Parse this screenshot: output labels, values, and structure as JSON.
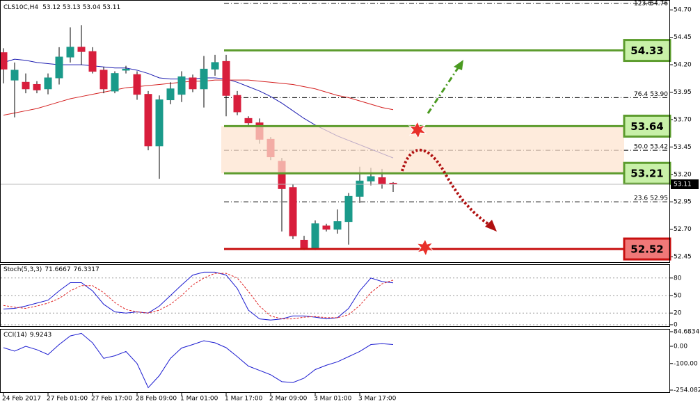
{
  "chart_data": [
    {
      "type": "candlestick",
      "title": "CLS10C,H4",
      "categories": [
        "24 Feb 2017",
        null,
        null,
        null,
        "27 Feb 01:00",
        null,
        null,
        null,
        "27 Feb 17:00",
        null,
        null,
        null,
        "28 Feb 09:00",
        null,
        null,
        null,
        "1 Mar 01:00",
        null,
        null,
        null,
        "1 Mar 17:00",
        null,
        null,
        null,
        "2 Mar 09:00",
        null,
        null,
        null,
        "3 Mar 01:00",
        null,
        null,
        null,
        "3 Mar 17:00",
        null,
        null,
        null
      ],
      "open": [
        54.31,
        54.06,
        54.04,
        54.02,
        53.98,
        54.08,
        54.27,
        54.36,
        54.32,
        54.15,
        53.96,
        54.15,
        54.11,
        53.93,
        53.46,
        53.88,
        53.93,
        54.08,
        53.98,
        54.16,
        54.23,
        53.92,
        53.71,
        53.67,
        53.52,
        53.32,
        53.08,
        52.6,
        52.53,
        52.73,
        52.7,
        52.77,
        53.0,
        53.14,
        53.17,
        53.12
      ],
      "high": [
        54.35,
        54.22,
        54.12,
        54.05,
        54.12,
        54.36,
        54.54,
        54.56,
        54.36,
        54.18,
        54.14,
        54.19,
        54.14,
        53.96,
        53.92,
        54.04,
        54.14,
        54.11,
        54.28,
        54.29,
        54.29,
        53.96,
        53.73,
        53.71,
        53.54,
        53.35,
        53.11,
        52.64,
        52.78,
        52.75,
        52.88,
        53.03,
        53.27,
        53.26,
        53.25,
        53.13
      ],
      "low": [
        54.03,
        53.72,
        53.94,
        53.94,
        53.93,
        54.02,
        54.22,
        54.2,
        54.12,
        53.94,
        53.94,
        54.12,
        53.88,
        53.42,
        53.16,
        53.84,
        53.86,
        53.95,
        53.81,
        54.1,
        53.73,
        53.74,
        53.65,
        53.48,
        53.33,
        52.68,
        52.61,
        52.51,
        52.51,
        52.68,
        52.66,
        52.56,
        52.94,
        53.1,
        53.07,
        53.04
      ],
      "close": [
        54.16,
        54.15,
        53.98,
        53.97,
        54.08,
        54.27,
        54.36,
        54.32,
        54.14,
        53.98,
        54.12,
        54.16,
        53.93,
        53.46,
        53.88,
        53.98,
        54.09,
        53.98,
        54.16,
        54.22,
        53.92,
        53.77,
        53.67,
        53.52,
        53.36,
        53.07,
        52.64,
        52.53,
        52.75,
        52.7,
        52.77,
        53.0,
        53.14,
        53.18,
        53.11,
        53.11
      ],
      "up_color": "#1a9a8a",
      "down_color": "#d81e3c",
      "series": [
        {
          "color": "#1c1cb0",
          "values": [
            54.22,
            54.25,
            54.24,
            54.22,
            54.21,
            54.2,
            54.2,
            54.2,
            54.19,
            54.18,
            54.17,
            54.17,
            54.15,
            54.12,
            54.08,
            54.07,
            54.07,
            54.07,
            54.08,
            54.08,
            54.07,
            54.04,
            54.0,
            53.96,
            53.91,
            53.85,
            53.78,
            53.71,
            53.65,
            53.6,
            53.55,
            53.51,
            53.47,
            53.43,
            53.39,
            53.35
          ]
        },
        {
          "color": "#d42020",
          "values": [
            53.74,
            53.76,
            53.78,
            53.8,
            53.83,
            53.86,
            53.89,
            53.91,
            53.93,
            53.95,
            53.97,
            53.99,
            54.0,
            54.01,
            54.02,
            54.03,
            54.04,
            54.05,
            54.05,
            54.06,
            54.06,
            54.06,
            54.06,
            54.05,
            54.04,
            54.03,
            54.02,
            54.0,
            53.98,
            53.95,
            53.92,
            53.9,
            53.87,
            53.84,
            53.81,
            53.79
          ]
        }
      ],
      "ylim": [
        52.4,
        54.79
      ],
      "yticks": [
        {
          "value": 52.45,
          "label": "52.45"
        },
        {
          "value": 52.7,
          "label": "52.70"
        },
        {
          "value": 52.95,
          "label": "52.95"
        },
        {
          "value": 53.2,
          "label": "53.20"
        },
        {
          "value": 53.45,
          "label": "53.45"
        },
        {
          "value": 53.7,
          "label": "53.70"
        },
        {
          "value": 53.95,
          "label": "53.95"
        },
        {
          "value": 54.2,
          "label": "54.20"
        },
        {
          "value": 54.45,
          "label": "54.45"
        },
        {
          "value": 54.7,
          "label": "54.70"
        }
      ],
      "levels": [
        {
          "value": 54.33,
          "color": "#5d9c2e",
          "fill": "#c8f0a8"
        },
        {
          "value": 53.64,
          "color": "#5d9c2e",
          "fill": "#c8f0a8"
        },
        {
          "value": 53.21,
          "color": "#5d9c2e",
          "fill": "#c8f0a8"
        },
        {
          "value": 52.52,
          "color": "#c81010",
          "fill": "#f07878"
        }
      ],
      "zone_color": "#fde3cf",
      "fib_levels": [
        {
          "level": "123.6",
          "price": 54.76
        },
        {
          "level": "76.4",
          "price": {
            "value": 53.9,
            "label": "53.90"
          }
        },
        {
          "level": "50.0",
          "price": 53.42
        },
        {
          "level": "23.6",
          "price": 52.95
        }
      ]
    },
    {
      "type": "line",
      "title": "Stoch(5,3,3)",
      "series": [
        {
          "color": "#1c1cd0",
          "values": [
            27,
            28,
            32,
            37,
            42,
            58,
            72,
            72,
            58,
            35,
            22,
            20,
            22,
            20,
            32,
            50,
            68,
            85,
            90,
            90,
            85,
            62,
            25,
            10,
            8,
            10,
            15,
            15,
            13,
            10,
            12,
            28,
            58,
            80,
            74,
            71.6667
          ]
        },
        {
          "color": "#e02020",
          "dashed": true,
          "values": [
            33,
            30,
            28,
            32,
            37,
            45,
            58,
            67,
            67,
            55,
            38,
            26,
            22,
            20,
            25,
            35,
            50,
            68,
            80,
            88,
            88,
            80,
            57,
            32,
            15,
            10,
            10,
            13,
            14,
            12,
            12,
            17,
            33,
            55,
            70,
            76.3317
          ]
        }
      ],
      "ylim": [
        0,
        100
      ],
      "yticks": [
        0,
        20,
        50,
        80
      ],
      "grid": true
    },
    {
      "type": "line",
      "title": "CCI(14)",
      "series": [
        {
          "color": "#1c1cd0",
          "values": [
            -8,
            -28,
            0,
            -20,
            -48,
            10,
            60,
            75,
            20,
            -70,
            -55,
            -30,
            -100,
            -240,
            -170,
            -70,
            -10,
            10,
            32,
            20,
            -8,
            -60,
            -115,
            -140,
            -165,
            -205,
            -210,
            -185,
            -135,
            -110,
            -90,
            -60,
            -30,
            10,
            15,
            9.9243
          ]
        }
      ],
      "ylim": [
        -254.082,
        84.6834
      ],
      "yticks": [
        -254.082,
        {
          "value": -100,
          "label": "-100.00"
        },
        {
          "value": 0,
          "label": "0.00"
        },
        84.6834
      ],
      "grid": false
    }
  ]
}
